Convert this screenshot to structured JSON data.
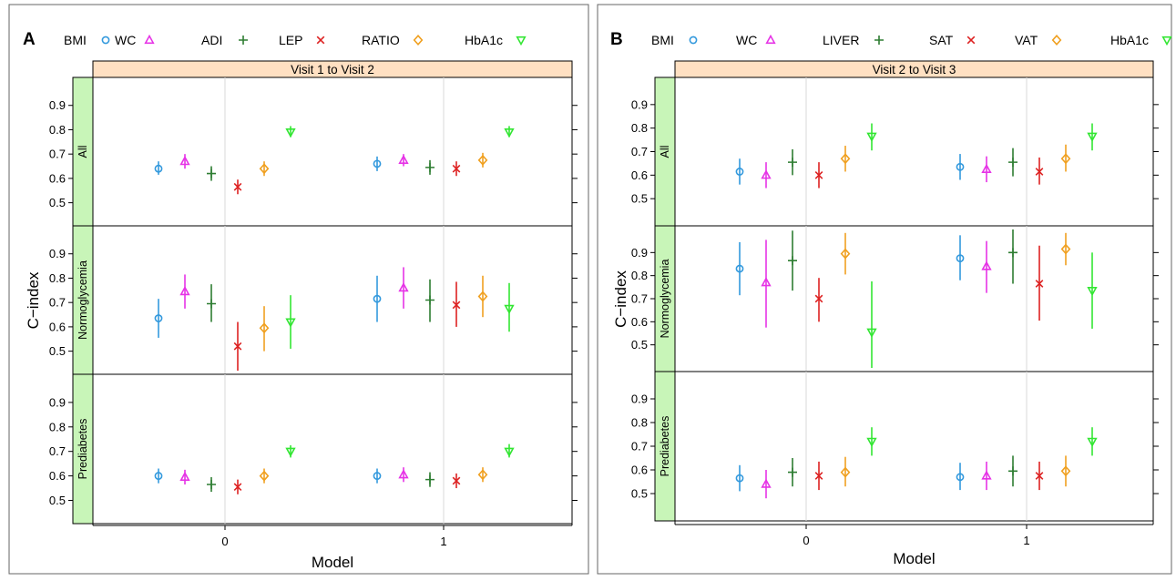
{
  "panels": [
    {
      "id": "A",
      "strip": "Visit 1 to Visit 2",
      "xlabel": "Model",
      "ylabel": "C−index",
      "legend": [
        {
          "name": "BMI",
          "marker": "circle",
          "color": "#3399dd"
        },
        {
          "name": "WC",
          "marker": "triangle",
          "color": "#e633e6"
        },
        {
          "name": "ADI",
          "marker": "plus",
          "color": "#2e7d32"
        },
        {
          "name": "LEP",
          "marker": "cross",
          "color": "#dd2222"
        },
        {
          "name": "RATIO",
          "marker": "diamond",
          "color": "#f0a020"
        },
        {
          "name": "HbA1c",
          "marker": "triangle-down",
          "color": "#33e633"
        }
      ]
    },
    {
      "id": "B",
      "strip": "Visit 2 to Visit 3",
      "xlabel": "Model",
      "ylabel": "C−index",
      "legend": [
        {
          "name": "BMI",
          "marker": "circle",
          "color": "#3399dd"
        },
        {
          "name": "WC",
          "marker": "triangle",
          "color": "#e633e6"
        },
        {
          "name": "LIVER",
          "marker": "plus",
          "color": "#2e7d32"
        },
        {
          "name": "SAT",
          "marker": "cross",
          "color": "#dd2222"
        },
        {
          "name": "VAT",
          "marker": "diamond",
          "color": "#f0a020"
        },
        {
          "name": "HbA1c",
          "marker": "triangle-down",
          "color": "#33e633"
        }
      ]
    }
  ],
  "chart_data": [
    {
      "type": "scatter",
      "title": "Visit 1 to Visit 2",
      "xlabel": "Model",
      "ylabel": "C−index",
      "x_ticks": [
        "0",
        "1"
      ],
      "y_ticks": [
        "0.5",
        "0.6",
        "0.7",
        "0.8",
        "0.9"
      ],
      "ylim": [
        0.42,
        1.0
      ],
      "rows": [
        {
          "label": "All",
          "series": [
            {
              "name": "BMI",
              "values": [
                [
                  0.64,
                  0.615,
                  0.67
                ],
                [
                  0.66,
                  0.63,
                  0.69
                ]
              ]
            },
            {
              "name": "WC",
              "values": [
                [
                  0.67,
                  0.64,
                  0.7
                ],
                [
                  0.675,
                  0.65,
                  0.7
                ]
              ]
            },
            {
              "name": "ADI",
              "values": [
                [
                  0.62,
                  0.59,
                  0.65
                ],
                [
                  0.645,
                  0.615,
                  0.675
                ]
              ]
            },
            {
              "name": "LEP",
              "values": [
                [
                  0.565,
                  0.535,
                  0.595
                ],
                [
                  0.64,
                  0.61,
                  0.67
                ]
              ]
            },
            {
              "name": "RATIO",
              "values": [
                [
                  0.64,
                  0.61,
                  0.67
                ],
                [
                  0.675,
                  0.645,
                  0.705
                ]
              ]
            },
            {
              "name": "HbA1c",
              "values": [
                [
                  0.79,
                  0.77,
                  0.815
                ],
                [
                  0.79,
                  0.77,
                  0.815
                ]
              ]
            }
          ]
        },
        {
          "label": "Normoglycemia",
          "series": [
            {
              "name": "BMI",
              "values": [
                [
                  0.635,
                  0.555,
                  0.715
                ],
                [
                  0.715,
                  0.62,
                  0.81
                ]
              ]
            },
            {
              "name": "WC",
              "values": [
                [
                  0.745,
                  0.675,
                  0.815
                ],
                [
                  0.76,
                  0.675,
                  0.845
                ]
              ]
            },
            {
              "name": "ADI",
              "values": [
                [
                  0.695,
                  0.62,
                  0.775
                ],
                [
                  0.71,
                  0.62,
                  0.795
                ]
              ]
            },
            {
              "name": "LEP",
              "values": [
                [
                  0.52,
                  0.42,
                  0.62
                ],
                [
                  0.69,
                  0.6,
                  0.785
                ]
              ]
            },
            {
              "name": "RATIO",
              "values": [
                [
                  0.595,
                  0.5,
                  0.685
                ],
                [
                  0.725,
                  0.64,
                  0.81
                ]
              ]
            },
            {
              "name": "HbA1c",
              "values": [
                [
                  0.62,
                  0.51,
                  0.73
                ],
                [
                  0.675,
                  0.58,
                  0.78
                ]
              ]
            }
          ]
        },
        {
          "label": "Prediabetes",
          "series": [
            {
              "name": "BMI",
              "values": [
                [
                  0.6,
                  0.57,
                  0.63
                ],
                [
                  0.6,
                  0.57,
                  0.63
                ]
              ]
            },
            {
              "name": "WC",
              "values": [
                [
                  0.595,
                  0.565,
                  0.625
                ],
                [
                  0.605,
                  0.575,
                  0.635
                ]
              ]
            },
            {
              "name": "ADI",
              "values": [
                [
                  0.565,
                  0.535,
                  0.595
                ],
                [
                  0.585,
                  0.555,
                  0.615
                ]
              ]
            },
            {
              "name": "LEP",
              "values": [
                [
                  0.555,
                  0.525,
                  0.585
                ],
                [
                  0.58,
                  0.55,
                  0.61
                ]
              ]
            },
            {
              "name": "RATIO",
              "values": [
                [
                  0.6,
                  0.57,
                  0.63
                ],
                [
                  0.605,
                  0.575,
                  0.635
                ]
              ]
            },
            {
              "name": "HbA1c",
              "values": [
                [
                  0.7,
                  0.675,
                  0.725
                ],
                [
                  0.7,
                  0.675,
                  0.73
                ]
              ]
            }
          ]
        }
      ]
    },
    {
      "type": "scatter",
      "title": "Visit 2 to Visit 3",
      "xlabel": "Model",
      "ylabel": "C−index",
      "x_ticks": [
        "0",
        "1"
      ],
      "y_ticks": [
        "0.5",
        "0.6",
        "0.7",
        "0.8",
        "0.9"
      ],
      "ylim": [
        0.4,
        1.0
      ],
      "rows": [
        {
          "label": "All",
          "series": [
            {
              "name": "BMI",
              "values": [
                [
                  0.615,
                  0.56,
                  0.67
                ],
                [
                  0.635,
                  0.58,
                  0.69
                ]
              ]
            },
            {
              "name": "WC",
              "values": [
                [
                  0.6,
                  0.545,
                  0.655
                ],
                [
                  0.625,
                  0.57,
                  0.68
                ]
              ]
            },
            {
              "name": "LIVER",
              "values": [
                [
                  0.655,
                  0.6,
                  0.71
                ],
                [
                  0.655,
                  0.595,
                  0.715
                ]
              ]
            },
            {
              "name": "SAT",
              "values": [
                [
                  0.6,
                  0.545,
                  0.655
                ],
                [
                  0.615,
                  0.56,
                  0.675
                ]
              ]
            },
            {
              "name": "VAT",
              "values": [
                [
                  0.67,
                  0.615,
                  0.725
                ],
                [
                  0.67,
                  0.615,
                  0.73
                ]
              ]
            },
            {
              "name": "HbA1c",
              "values": [
                [
                  0.765,
                  0.705,
                  0.82
                ],
                [
                  0.765,
                  0.705,
                  0.82
                ]
              ]
            }
          ]
        },
        {
          "label": "Normoglycemia",
          "series": [
            {
              "name": "BMI",
              "values": [
                [
                  0.83,
                  0.715,
                  0.945
                ],
                [
                  0.875,
                  0.78,
                  0.975
                ]
              ]
            },
            {
              "name": "WC",
              "values": [
                [
                  0.77,
                  0.575,
                  0.955
                ],
                [
                  0.84,
                  0.725,
                  0.95
                ]
              ]
            },
            {
              "name": "LIVER",
              "values": [
                [
                  0.865,
                  0.735,
                  0.995
                ],
                [
                  0.9,
                  0.765,
                  1.0
                ]
              ]
            },
            {
              "name": "SAT",
              "values": [
                [
                  0.7,
                  0.6,
                  0.79
                ],
                [
                  0.765,
                  0.605,
                  0.93
                ]
              ]
            },
            {
              "name": "VAT",
              "values": [
                [
                  0.895,
                  0.805,
                  0.985
                ],
                [
                  0.915,
                  0.845,
                  0.985
                ]
              ]
            },
            {
              "name": "HbA1c",
              "values": [
                [
                  0.555,
                  0.4,
                  0.775
                ],
                [
                  0.735,
                  0.57,
                  0.9
                ]
              ]
            }
          ]
        },
        {
          "label": "Prediabetes",
          "series": [
            {
              "name": "BMI",
              "values": [
                [
                  0.565,
                  0.51,
                  0.62
                ],
                [
                  0.57,
                  0.515,
                  0.63
                ]
              ]
            },
            {
              "name": "WC",
              "values": [
                [
                  0.54,
                  0.48,
                  0.6
                ],
                [
                  0.575,
                  0.515,
                  0.635
                ]
              ]
            },
            {
              "name": "LIVER",
              "values": [
                [
                  0.59,
                  0.53,
                  0.65
                ],
                [
                  0.595,
                  0.53,
                  0.66
                ]
              ]
            },
            {
              "name": "SAT",
              "values": [
                [
                  0.575,
                  0.515,
                  0.635
                ],
                [
                  0.575,
                  0.515,
                  0.635
                ]
              ]
            },
            {
              "name": "VAT",
              "values": [
                [
                  0.59,
                  0.53,
                  0.655
                ],
                [
                  0.595,
                  0.53,
                  0.66
                ]
              ]
            },
            {
              "name": "HbA1c",
              "values": [
                [
                  0.72,
                  0.66,
                  0.78
                ],
                [
                  0.72,
                  0.66,
                  0.78
                ]
              ]
            }
          ]
        }
      ]
    }
  ]
}
